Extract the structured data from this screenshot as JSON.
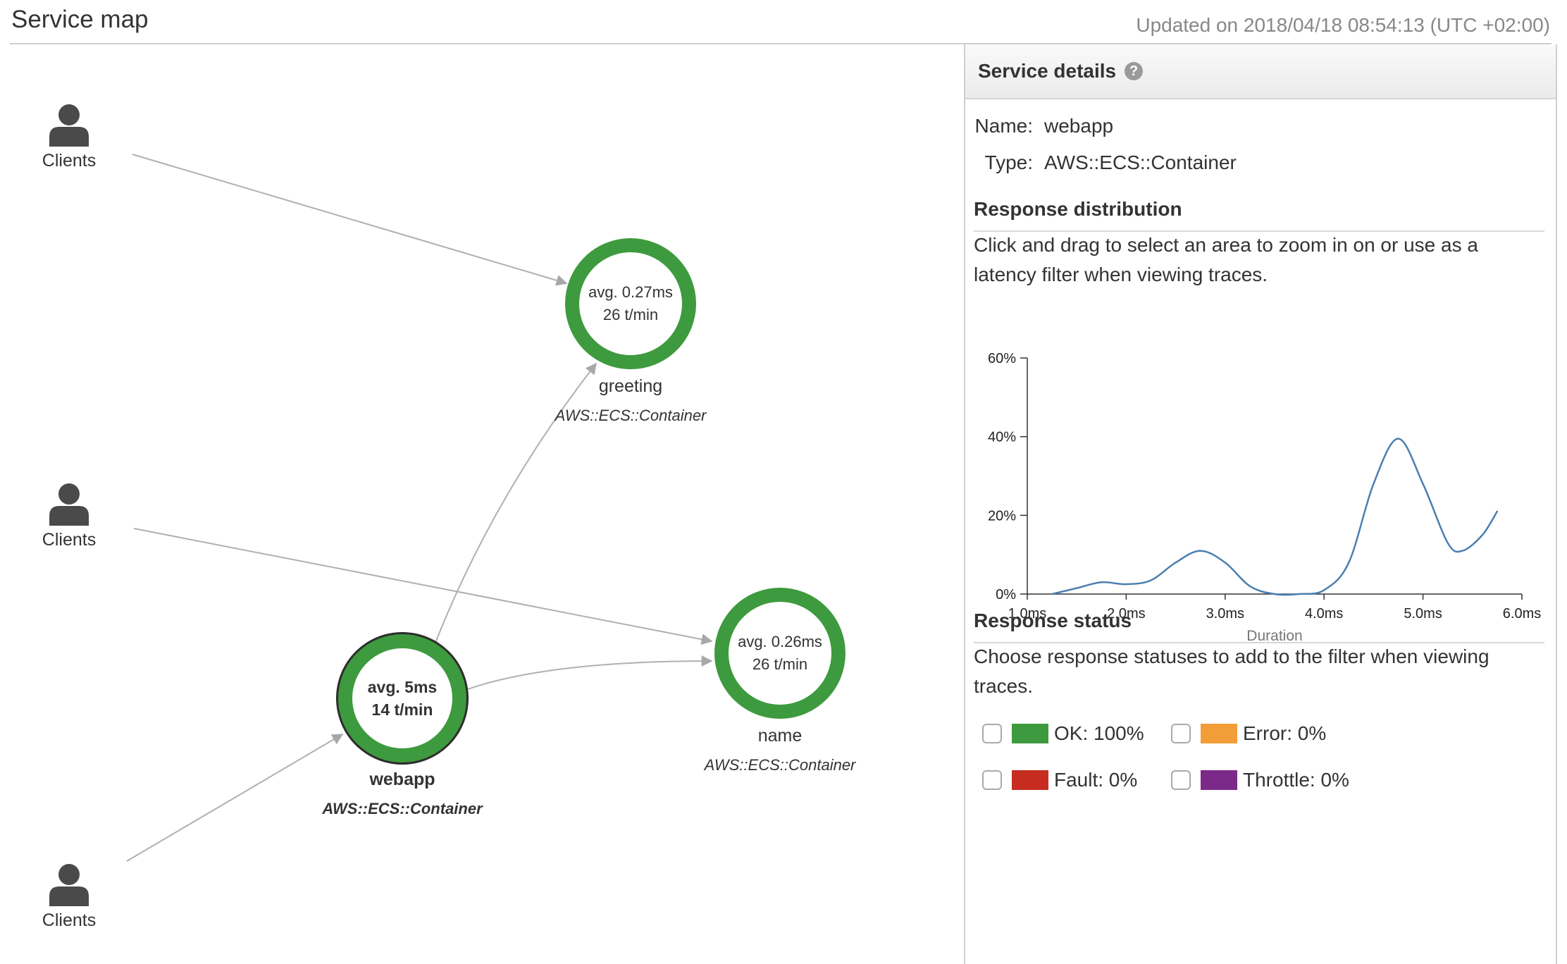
{
  "header": {
    "title": "Service map",
    "updated": "Updated on 2018/04/18 08:54:13 (UTC +02:00)"
  },
  "clients": [
    {
      "label": "Clients"
    },
    {
      "label": "Clients"
    },
    {
      "label": "Clients"
    }
  ],
  "services": [
    {
      "name": "greeting",
      "type": "AWS::ECS::Container",
      "avg": "avg. 0.27ms",
      "rate": "26 t/min",
      "selected": false
    },
    {
      "name": "webapp",
      "type": "AWS::ECS::Container",
      "avg": "avg. 5ms",
      "rate": "14 t/min",
      "selected": true
    },
    {
      "name": "name",
      "type": "AWS::ECS::Container",
      "avg": "avg. 0.26ms",
      "rate": "26 t/min",
      "selected": false
    }
  ],
  "panel": {
    "title": "Service details",
    "help_icon": "question-circle-icon",
    "name_label": "Name:",
    "name_value": "webapp",
    "type_label": "Type:",
    "type_value": "AWS::ECS::Container",
    "distribution_title": "Response distribution",
    "distribution_help": "Click and drag to select an area to zoom in on or use as a latency filter when viewing traces.",
    "status_title": "Response status",
    "status_help": "Choose response statuses to add to the filter when viewing traces.",
    "statuses": [
      {
        "label": "OK: 100%",
        "color": "#3e9a3e",
        "checked": false
      },
      {
        "label": "Error: 0%",
        "color": "#f29d38",
        "checked": false
      },
      {
        "label": "Fault: 0%",
        "color": "#c62d1f",
        "checked": false
      },
      {
        "label": "Throttle: 0%",
        "color": "#7b2a8a",
        "checked": false
      }
    ]
  },
  "colors": {
    "healthy": "#3e9a3e",
    "line": "#4a7fb0",
    "edge": "#b0b0b0"
  },
  "chart_data": {
    "type": "line",
    "xlabel": "Duration",
    "ylabel": "",
    "x_ticks": [
      "1.0ms",
      "2.0ms",
      "3.0ms",
      "4.0ms",
      "5.0ms",
      "6.0ms"
    ],
    "y_ticks": [
      "0%",
      "20%",
      "40%",
      "60%"
    ],
    "xlim": [
      1.0,
      6.0
    ],
    "ylim": [
      0,
      60
    ],
    "grid": false,
    "series": [
      {
        "x": [
          1.25,
          1.5,
          1.75,
          2.0,
          2.25,
          2.5,
          2.75,
          3.0,
          3.25,
          3.5,
          3.75,
          4.0,
          4.25,
          4.5,
          4.75,
          5.0,
          5.25,
          5.4,
          5.6,
          5.75
        ],
        "y": [
          0,
          1.5,
          3,
          2.5,
          3.5,
          8,
          11,
          8,
          2,
          0,
          0,
          1,
          8,
          28,
          39.5,
          28,
          13,
          11,
          15,
          21
        ]
      }
    ]
  }
}
